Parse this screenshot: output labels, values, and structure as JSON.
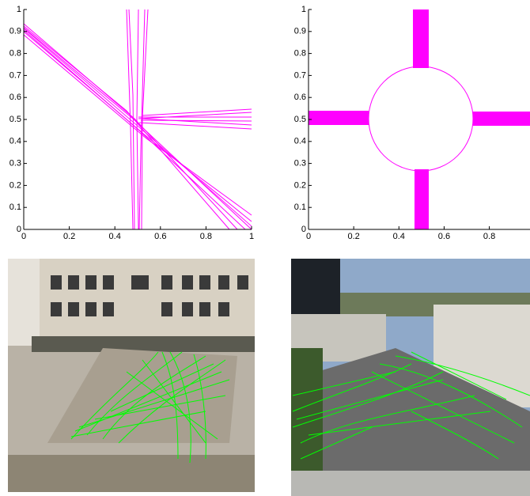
{
  "chart_data": [
    {
      "type": "line",
      "xlim": [
        0,
        1
      ],
      "ylim": [
        0,
        1
      ],
      "xticks": [
        0,
        0.2,
        0.4,
        0.6,
        0.8,
        1
      ],
      "yticks": [
        0,
        0.1,
        0.2,
        0.3,
        0.4,
        0.5,
        0.6,
        0.7,
        0.8,
        0.9,
        1
      ]
    },
    {
      "type": "line",
      "xlim": [
        0,
        0.98
      ],
      "ylim": [
        0,
        1
      ],
      "xticks": [
        0,
        0.2,
        0.4,
        0.6,
        0.8
      ],
      "yticks": [
        0,
        0.1,
        0.2,
        0.3,
        0.4,
        0.5,
        0.6,
        0.7,
        0.8,
        0.9,
        1
      ]
    }
  ]
}
